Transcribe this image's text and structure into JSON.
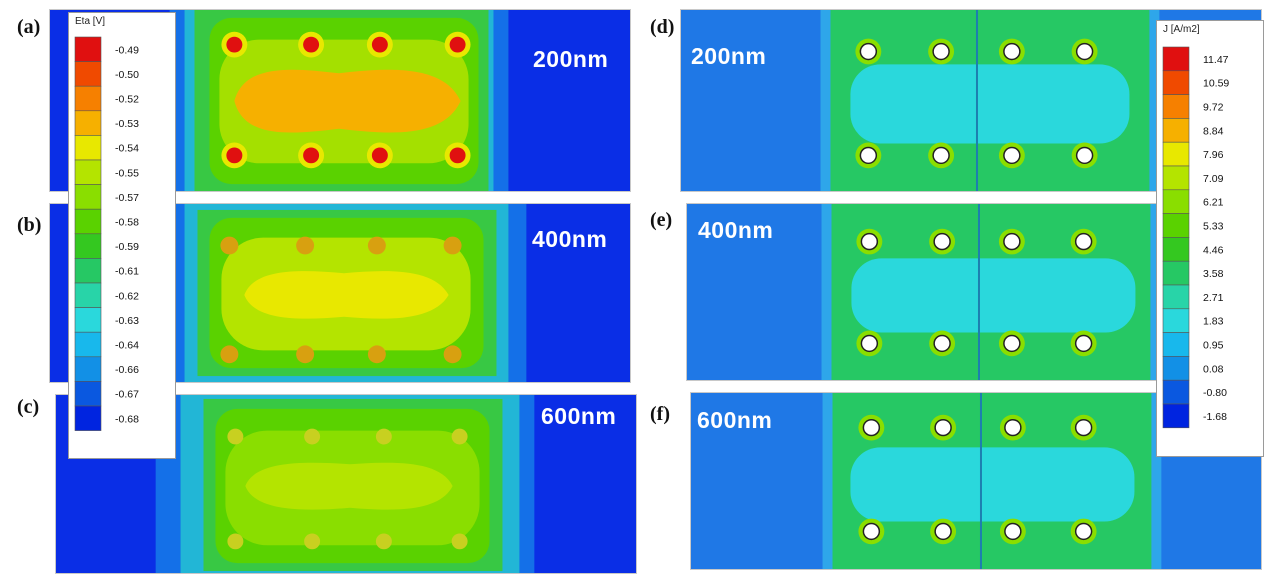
{
  "panel_labels": [
    "(a)",
    "(b)",
    "(c)",
    "(d)",
    "(e)",
    "(f)"
  ],
  "thickness_labels": [
    "200nm",
    "400nm",
    "600nm",
    "200nm",
    "400nm",
    "600nm"
  ],
  "legend_eta": {
    "title": "Eta [V]",
    "values": [
      "-0.49",
      "-0.50",
      "-0.52",
      "-0.53",
      "-0.54",
      "-0.55",
      "-0.57",
      "-0.58",
      "-0.59",
      "-0.61",
      "-0.62",
      "-0.63",
      "-0.64",
      "-0.66",
      "-0.67",
      "-0.68"
    ],
    "colors": [
      "#e01010",
      "#f04a00",
      "#f68000",
      "#f6b000",
      "#e8e800",
      "#b4e400",
      "#8ade00",
      "#5ad200",
      "#34c820",
      "#26c864",
      "#28d4a8",
      "#2ad8dc",
      "#18b8ec",
      "#1290e6",
      "#0a58e0",
      "#0024e0"
    ]
  },
  "legend_j": {
    "title": "J [A/m2]",
    "values": [
      "11.47",
      "10.59",
      "9.72",
      "8.84",
      "7.96",
      "7.09",
      "6.21",
      "5.33",
      "4.46",
      "3.58",
      "2.71",
      "1.83",
      "0.95",
      "0.08",
      "-0.80",
      "-1.68"
    ],
    "colors": [
      "#e01010",
      "#f04a00",
      "#f68000",
      "#f6b000",
      "#e8e800",
      "#b4e400",
      "#8ade00",
      "#5ad200",
      "#34c820",
      "#26c864",
      "#28d4a8",
      "#2ad8dc",
      "#18b8ec",
      "#1290e6",
      "#0a58e0",
      "#0024e0"
    ]
  }
}
